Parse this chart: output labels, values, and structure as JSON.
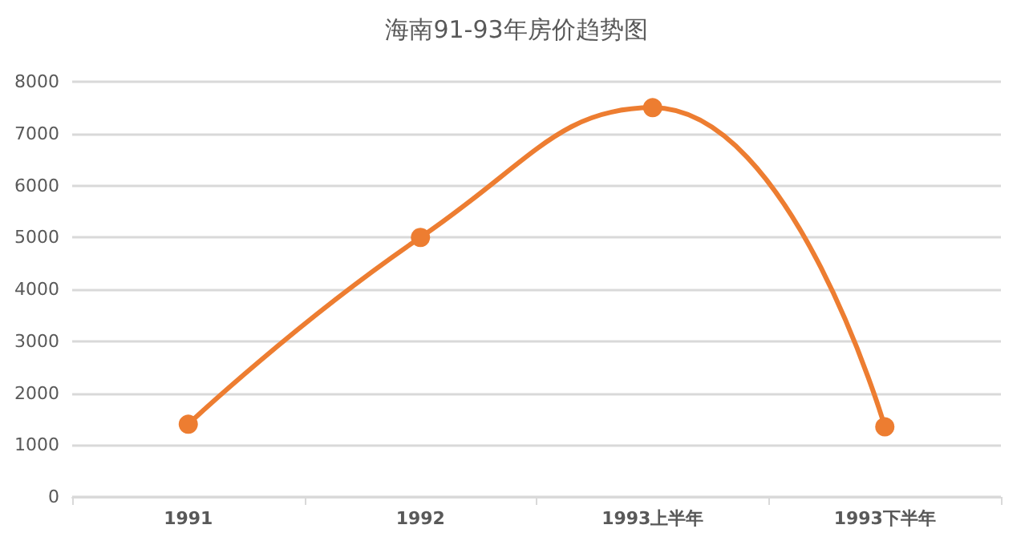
{
  "chart_data": {
    "type": "line",
    "title": "海南91-93年房价趋势图",
    "categories": [
      "1991",
      "1992",
      "1993上半年",
      "1993下半年"
    ],
    "series": [
      {
        "color": "#ed7d31",
        "values": [
          1400,
          5000,
          7500,
          1350
        ]
      }
    ],
    "ylim": [
      0,
      8000
    ],
    "yticks": [
      0,
      1000,
      2000,
      3000,
      4000,
      5000,
      6000,
      7000,
      8000
    ],
    "grid": "y",
    "marker": "circle",
    "line_style": "solid"
  }
}
